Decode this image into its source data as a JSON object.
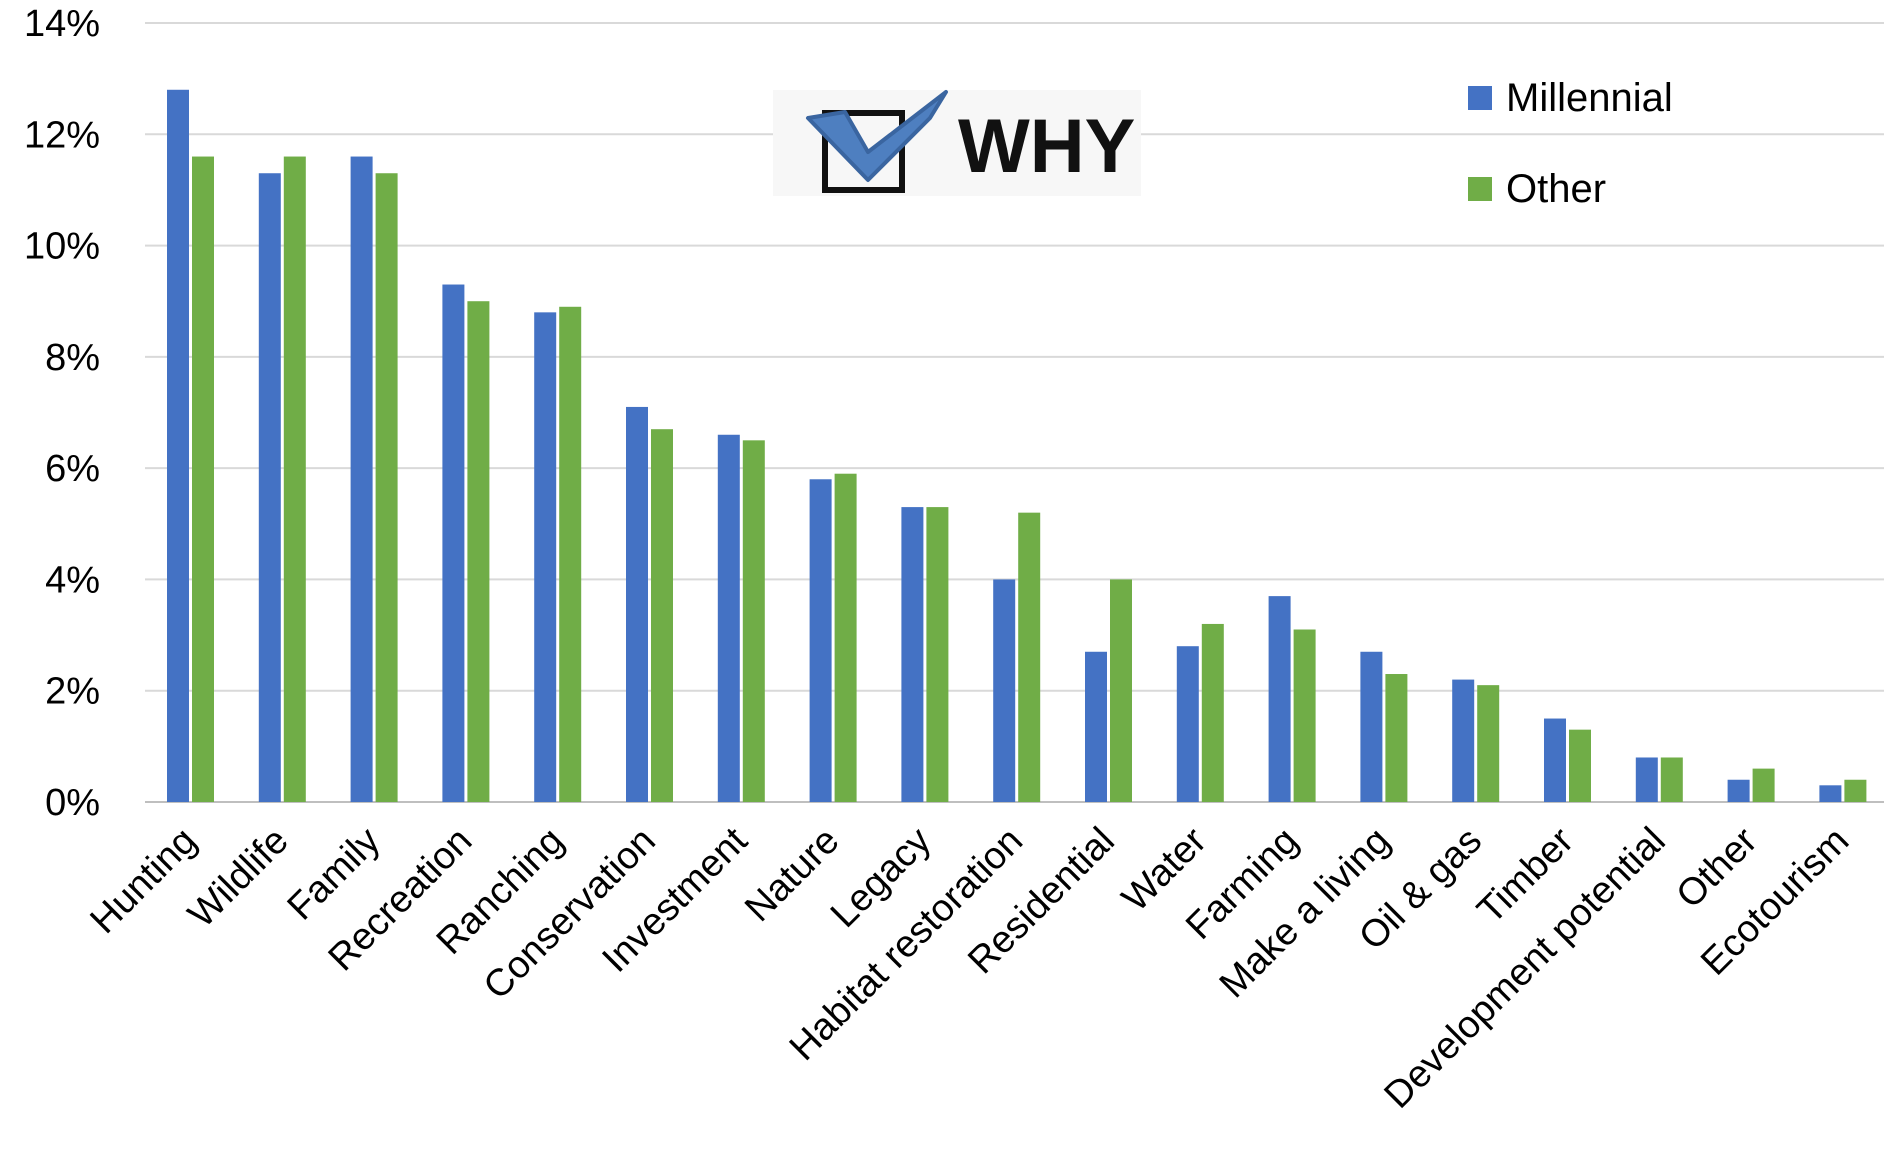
{
  "chart_data": {
    "type": "bar",
    "title": "",
    "xlabel": "",
    "ylabel": "",
    "ylim": [
      0,
      14
    ],
    "y_ticks": [
      "0%",
      "2%",
      "4%",
      "6%",
      "8%",
      "10%",
      "12%",
      "14%"
    ],
    "y_tick_values": [
      0,
      2,
      4,
      6,
      8,
      10,
      12,
      14
    ],
    "grid": true,
    "legend_position": "top-right",
    "categories": [
      "Hunting",
      "Wildlife",
      "Family",
      "Recreation",
      "Ranching",
      "Conservation",
      "Investment",
      "Nature",
      "Legacy",
      "Habitat restoration",
      "Residential",
      "Water",
      "Farming",
      "Make a living",
      "Oil & gas",
      "Timber",
      "Development potential",
      "Other",
      "Ecotourism"
    ],
    "series": [
      {
        "name": "Millennial",
        "color": "#4472C4",
        "values": [
          12.8,
          11.3,
          11.6,
          9.3,
          8.8,
          7.1,
          6.6,
          5.8,
          5.3,
          4.0,
          2.7,
          2.8,
          3.7,
          2.7,
          2.2,
          1.5,
          0.8,
          0.4,
          0.3
        ]
      },
      {
        "name": "Other",
        "color": "#70AD47",
        "values": [
          11.6,
          11.6,
          11.3,
          9.0,
          8.9,
          6.7,
          6.5,
          5.9,
          5.3,
          5.2,
          4.0,
          3.2,
          3.1,
          2.3,
          2.1,
          1.3,
          0.8,
          0.6,
          0.4
        ]
      }
    ],
    "logo": {
      "text": "WHY",
      "icon": "checkbox-check-icon"
    }
  }
}
